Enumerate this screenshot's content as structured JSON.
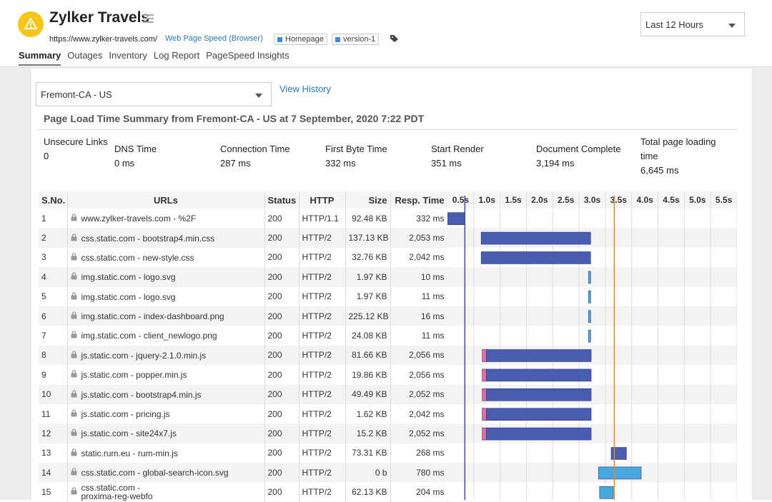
{
  "header": {
    "title": "Zylker Travels",
    "url": "https://www.zylker-travels.com/",
    "monitor_type": "Web Page Speed (Browser)",
    "tags": [
      "Homepage",
      "version-1"
    ],
    "time_range": "Last 12 Hours"
  },
  "tabs": [
    "Summary",
    "Outages",
    "Inventory",
    "Log Report",
    "PageSpeed Insights"
  ],
  "active_tab": 0,
  "location": "Fremont-CA - US",
  "view_history": "View History",
  "summary_title": "Page Load Time Summary from Fremont-CA - US at 7 September, 2020 7:22 PDT",
  "metrics": [
    {
      "label": "Unsecure Links",
      "value": "0"
    },
    {
      "label": "DNS Time",
      "value": "0 ms"
    },
    {
      "label": "Connection Time",
      "value": "287 ms"
    },
    {
      "label": "First Byte Time",
      "value": "332 ms"
    },
    {
      "label": "Start Render",
      "value": "351 ms"
    },
    {
      "label": "Document Complete",
      "value": "3,194 ms"
    },
    {
      "label": "Total page loading time",
      "value": "6,645 ms"
    }
  ],
  "table": {
    "columns": [
      "S.No.",
      "URLs",
      "Status",
      "HTTP",
      "Size",
      "Resp. Time"
    ],
    "rows": [
      [
        "1",
        "www.zylker-travels.com - %2F",
        "200",
        "HTTP/1.1",
        "92.48 KB",
        "332 ms"
      ],
      [
        "2",
        "css.static.com - bootstrap4.min.css",
        "200",
        "HTTP/2",
        "137.13 KB",
        "2,053 ms"
      ],
      [
        "3",
        "css.static.com - new-style.css",
        "200",
        "HTTP/2",
        "32.76 KB",
        "2,042 ms"
      ],
      [
        "4",
        "img.static.com - logo.svg",
        "200",
        "HTTP/2",
        "1.97 KB",
        "10 ms"
      ],
      [
        "5",
        "img.static.com - logo.svg",
        "200",
        "HTTP/2",
        "1.97 KB",
        "11 ms"
      ],
      [
        "6",
        "img.static.com - index-dashboard.png",
        "200",
        "HTTP/2",
        "225.12 KB",
        "16 ms"
      ],
      [
        "7",
        "img.static.com - client_newlogo.png",
        "200",
        "HTTP/2",
        "24.08 KB",
        "11 ms"
      ],
      [
        "8",
        "js.static.com - jquery-2.1.0.min.js",
        "200",
        "HTTP/2",
        "81.66 KB",
        "2,056 ms"
      ],
      [
        "9",
        "js.static.com - popper.min.js",
        "200",
        "HTTP/2",
        "19.86 KB",
        "2,056 ms"
      ],
      [
        "10",
        "js.static.com - bootstrap4.min.js",
        "200",
        "HTTP/2",
        "49.49 KB",
        "2,052 ms"
      ],
      [
        "11",
        "js.static.com - pricing.js",
        "200",
        "HTTP/2",
        "1.62 KB",
        "2,042 ms"
      ],
      [
        "12",
        "js.static.com - site24x7.js",
        "200",
        "HTTP/2",
        "15.2 KB",
        "2,052 ms"
      ],
      [
        "13",
        "static.rum.eu - rum-min.js",
        "200",
        "HTTP/2",
        "73.31 KB",
        "268 ms"
      ],
      [
        "14",
        "css.static.com - global-search-icon.svg",
        "200",
        "HTTP/2",
        "0 b",
        "780 ms"
      ],
      [
        "15",
        "css.static.com - proxima-reg-webfo",
        "200",
        "HTTP/2",
        "62.13 KB",
        "204 ms"
      ]
    ]
  },
  "waterfall": {
    "xlim": [
      0,
      5.5
    ],
    "xticks": [
      {
        "value": 0.5,
        "label": "0.5s"
      },
      {
        "value": 1.0,
        "label": "1.0s"
      },
      {
        "value": 1.5,
        "label": "1.5s"
      },
      {
        "value": 2.0,
        "label": "2.0s"
      },
      {
        "value": 2.5,
        "label": "2.5s"
      },
      {
        "value": 3.0,
        "label": "3.0s"
      },
      {
        "value": 3.5,
        "label": "3.5s"
      },
      {
        "value": 4.0,
        "label": "4.0s"
      },
      {
        "value": 4.5,
        "label": "4.5s"
      },
      {
        "value": 5.0,
        "label": "5.0s"
      },
      {
        "value": 5.5,
        "label": "5.5s"
      }
    ],
    "markers": [
      {
        "value": 0.33,
        "color": "#3d4ea6"
      },
      {
        "value": 3.17,
        "color": "#e8891a"
      }
    ],
    "bars": [
      [
        {
          "from": 0,
          "to": 0.33,
          "color": "#4a5cb0"
        }
      ],
      [
        {
          "from": 0.64,
          "to": 2.72,
          "color": "#4a5cb0"
        }
      ],
      [
        {
          "from": 0.64,
          "to": 2.72,
          "color": "#4a5cb0"
        }
      ],
      [
        {
          "from": 2.68,
          "to": 2.72,
          "color": "#4aa8e0"
        }
      ],
      [
        {
          "from": 2.68,
          "to": 2.72,
          "color": "#4aa8e0"
        }
      ],
      [
        {
          "from": 2.68,
          "to": 2.72,
          "color": "#4aa8e0"
        }
      ],
      [
        {
          "from": 2.68,
          "to": 2.72,
          "color": "#4aa8e0"
        }
      ],
      [
        {
          "from": 0.66,
          "to": 0.74,
          "color": "#e66b9c"
        },
        {
          "from": 0.74,
          "to": 2.73,
          "color": "#4a5cb0"
        }
      ],
      [
        {
          "from": 0.66,
          "to": 0.74,
          "color": "#e66b9c"
        },
        {
          "from": 0.74,
          "to": 2.73,
          "color": "#4a5cb0"
        }
      ],
      [
        {
          "from": 0.66,
          "to": 0.74,
          "color": "#e66b9c"
        },
        {
          "from": 0.74,
          "to": 2.73,
          "color": "#4a5cb0"
        }
      ],
      [
        {
          "from": 0.66,
          "to": 0.74,
          "color": "#e66b9c"
        },
        {
          "from": 0.74,
          "to": 2.73,
          "color": "#4a5cb0"
        }
      ],
      [
        {
          "from": 0.66,
          "to": 0.74,
          "color": "#e66b9c"
        },
        {
          "from": 0.74,
          "to": 2.73,
          "color": "#4a5cb0"
        }
      ],
      [
        {
          "from": 3.11,
          "to": 3.4,
          "color": "#4a5cb0"
        }
      ],
      [
        {
          "from": 2.87,
          "to": 3.68,
          "color": "#4aa8e0"
        }
      ],
      [
        {
          "from": 2.89,
          "to": 3.15,
          "color": "#4aa8e0"
        }
      ]
    ]
  }
}
